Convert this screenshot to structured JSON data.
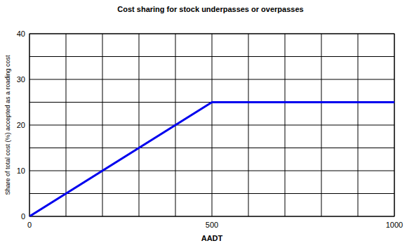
{
  "chart_data": {
    "type": "line",
    "title": "Cost sharing for stock underpasses or overpasses",
    "x_label": "AADT",
    "y_label": "Share of total cost (%) accepted as a roading cost",
    "x": [
      0,
      500,
      1000
    ],
    "values": [
      0,
      25,
      25
    ],
    "color": "#0000ee",
    "xlim": [
      0,
      1000
    ],
    "xticks": [
      0,
      500,
      1000
    ],
    "ylim": [
      0,
      40
    ],
    "yticks": [
      0,
      10,
      20,
      30,
      40
    ],
    "grid": true
  }
}
